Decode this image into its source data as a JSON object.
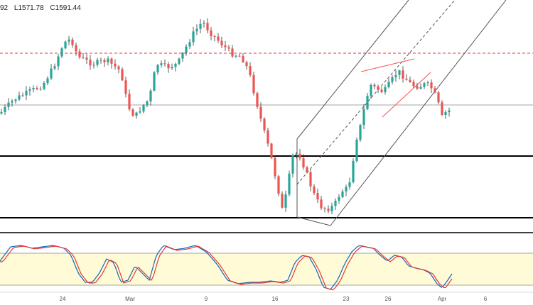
{
  "header": {
    "high_fragment": "92",
    "low": "L1571.78",
    "close": "C1591.44"
  },
  "chart_data": {
    "type": "candlestick",
    "x_tick_labels": [
      "24",
      "Mar",
      "9",
      "16",
      "23",
      "26",
      "Apr",
      "6"
    ],
    "colors": {
      "up": "#26a69a",
      "down": "#ef5350",
      "wick": "#333333",
      "resistance": "#e53935",
      "channel": "#555555",
      "flag": "#ff4d4d",
      "stoch_k": "#1565c0",
      "stoch_d": "#e53935",
      "stoch_band": "#fffbd6"
    },
    "stochastic": {
      "upper": 80,
      "lower": 20
    }
  }
}
